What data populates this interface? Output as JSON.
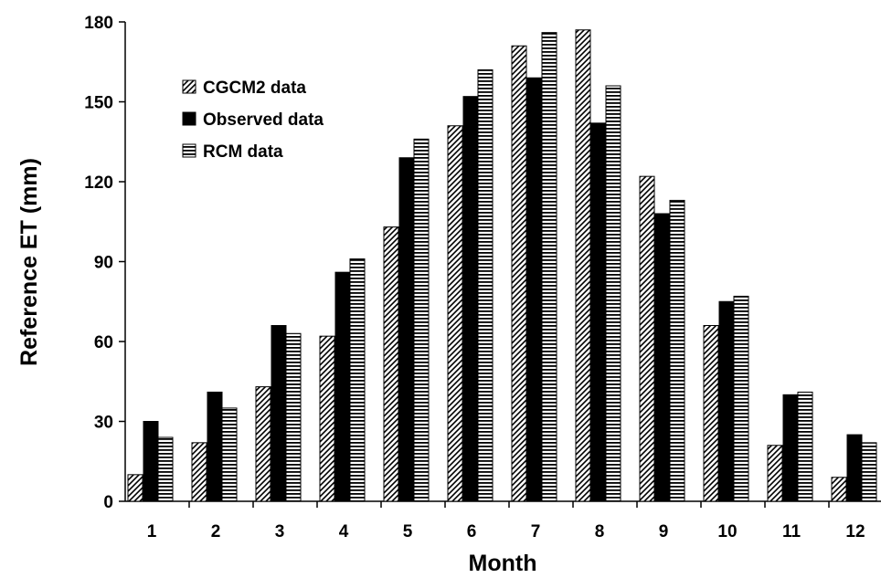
{
  "chart_data": {
    "type": "bar",
    "title": "",
    "xlabel": "Month",
    "ylabel": "Reference ET (mm)",
    "categories": [
      "1",
      "2",
      "3",
      "4",
      "5",
      "6",
      "7",
      "8",
      "9",
      "10",
      "11",
      "12"
    ],
    "ylim": [
      0,
      180
    ],
    "yticks": [
      "0",
      "30",
      "60",
      "90",
      "120",
      "150",
      "180"
    ],
    "grid": false,
    "legend_position": "top-left",
    "series": [
      {
        "name": "CGCM2 data",
        "pattern": "diagonal-hatch",
        "values": [
          10,
          22,
          43,
          62,
          103,
          141,
          171,
          177,
          122,
          66,
          21,
          9
        ]
      },
      {
        "name": "Observed data",
        "pattern": "solid-black",
        "values": [
          30,
          41,
          66,
          86,
          129,
          152,
          159,
          142,
          108,
          75,
          40,
          25
        ]
      },
      {
        "name": "RCM data",
        "pattern": "horizontal-stripes",
        "values": [
          24,
          35,
          63,
          91,
          136,
          162,
          176,
          156,
          113,
          77,
          41,
          22
        ]
      }
    ]
  }
}
